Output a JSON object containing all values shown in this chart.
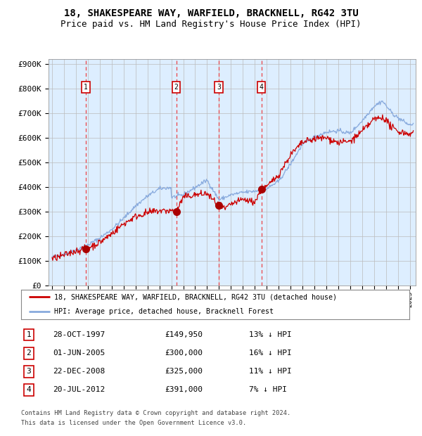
{
  "title": "18, SHAKESPEARE WAY, WARFIELD, BRACKNELL, RG42 3TU",
  "subtitle": "Price paid vs. HM Land Registry's House Price Index (HPI)",
  "title_fontsize": 10,
  "subtitle_fontsize": 9,
  "background_color": "#ffffff",
  "plot_bg_color": "#ddeeff",
  "ylim": [
    0,
    920000
  ],
  "yticks": [
    0,
    100000,
    200000,
    300000,
    400000,
    500000,
    600000,
    700000,
    800000,
    900000
  ],
  "ytick_labels": [
    "£0",
    "£100K",
    "£200K",
    "£300K",
    "£400K",
    "£500K",
    "£600K",
    "£700K",
    "£800K",
    "£900K"
  ],
  "xmin": 1994.7,
  "xmax": 2025.5,
  "xticks": [
    1995,
    1996,
    1997,
    1998,
    1999,
    2000,
    2001,
    2002,
    2003,
    2004,
    2005,
    2006,
    2007,
    2008,
    2009,
    2010,
    2011,
    2012,
    2013,
    2014,
    2015,
    2016,
    2017,
    2018,
    2019,
    2020,
    2021,
    2022,
    2023,
    2024,
    2025
  ],
  "red_line_color": "#cc0000",
  "blue_line_color": "#88aadd",
  "sale_marker_color": "#aa0000",
  "dashed_line_color": "#ee3333",
  "numbered_box_color": "#cc0000",
  "grid_color": "#bbbbbb",
  "purchases": [
    {
      "num": 1,
      "year": 1997.83,
      "price": 149950
    },
    {
      "num": 2,
      "year": 2005.42,
      "price": 300000
    },
    {
      "num": 3,
      "year": 2008.98,
      "price": 325000
    },
    {
      "num": 4,
      "year": 2012.55,
      "price": 391000
    }
  ],
  "table_rows": [
    {
      "num": 1,
      "date": "28-OCT-1997",
      "price": "£149,950",
      "pct": "13% ↓ HPI"
    },
    {
      "num": 2,
      "date": "01-JUN-2005",
      "price": "£300,000",
      "pct": "16% ↓ HPI"
    },
    {
      "num": 3,
      "date": "22-DEC-2008",
      "price": "£325,000",
      "pct": "11% ↓ HPI"
    },
    {
      "num": 4,
      "date": "20-JUL-2012",
      "price": "£391,000",
      "pct": "7% ↓ HPI"
    }
  ],
  "legend_line1": "18, SHAKESPEARE WAY, WARFIELD, BRACKNELL, RG42 3TU (detached house)",
  "legend_line2": "HPI: Average price, detached house, Bracknell Forest",
  "footer_line1": "Contains HM Land Registry data © Crown copyright and database right 2024.",
  "footer_line2": "This data is licensed under the Open Government Licence v3.0."
}
